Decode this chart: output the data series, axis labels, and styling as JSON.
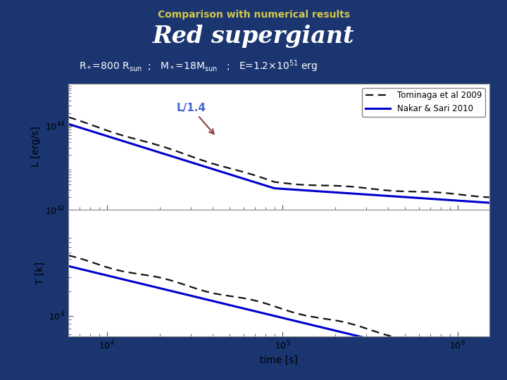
{
  "title_top": "Comparison with numerical results",
  "title_main": "Red supergiant",
  "background_color": "#1a3570",
  "plot_bg": "#ffffff",
  "line1_label": "Tominaga et al 2009",
  "line2_label": "Nakar & Sari 2010",
  "line1_color": "#111111",
  "line2_color": "#0000cc",
  "annotation_text": "L/1.4",
  "annotation_color": "#4466cc",
  "arrow_color": "#884444",
  "xlim_log": [
    3.78,
    6.18
  ],
  "L_ylim_log": [
    42.0,
    45.0
  ],
  "T_ylim_log": [
    3.75,
    5.3
  ]
}
